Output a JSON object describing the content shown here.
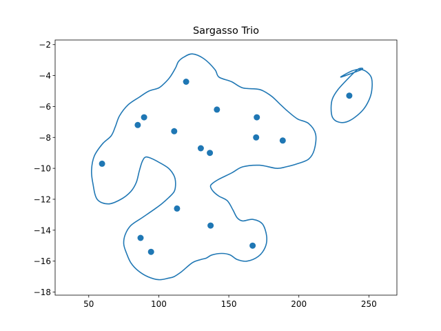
{
  "chart_data": {
    "type": "scatter",
    "title": "Sargasso Trio",
    "xlabel": "",
    "ylabel": "",
    "xlim": [
      26,
      270
    ],
    "ylim": [
      -18.2,
      -1.7
    ],
    "xticks": [
      50,
      100,
      150,
      200,
      250
    ],
    "yticks": [
      -18,
      -16,
      -14,
      -12,
      -10,
      -8,
      -6,
      -4,
      -2
    ],
    "grid": false,
    "colors": {
      "points": "#1f77b4",
      "contour": "#1f77b4"
    },
    "points": [
      {
        "x": 236.0,
        "y": -5.3
      },
      {
        "x": 119.5,
        "y": -4.4
      },
      {
        "x": 141.5,
        "y": -6.2
      },
      {
        "x": 170.0,
        "y": -6.7
      },
      {
        "x": 89.5,
        "y": -6.7
      },
      {
        "x": 85.0,
        "y": -7.2
      },
      {
        "x": 111.0,
        "y": -7.6
      },
      {
        "x": 169.5,
        "y": -8.0
      },
      {
        "x": 188.5,
        "y": -8.2
      },
      {
        "x": 130.0,
        "y": -8.7
      },
      {
        "x": 136.5,
        "y": -9.0
      },
      {
        "x": 59.5,
        "y": -9.7
      },
      {
        "x": 113.0,
        "y": -12.6
      },
      {
        "x": 137.0,
        "y": -13.7
      },
      {
        "x": 87.0,
        "y": -14.5
      },
      {
        "x": 167.0,
        "y": -15.0
      },
      {
        "x": 94.5,
        "y": -15.4
      }
    ],
    "contours": [
      {
        "x": [
          124,
          132,
          140,
          143,
          152,
          160,
          172,
          180,
          186,
          192,
          199,
          207,
          212,
          211,
          207,
          199,
          191,
          184,
          172,
          160,
          152,
          143,
          138,
          137,
          139,
          143,
          149,
          153,
          156,
          160,
          167,
          174,
          177,
          176,
          171,
          163,
          156,
          151,
          145,
          138,
          134,
          130,
          124,
          116,
          111,
          107,
          100,
          92,
          85,
          80,
          77,
          75,
          76,
          80,
          88,
          96,
          102,
          107,
          111,
          112,
          111,
          107,
          100,
          93,
          90,
          88,
          86,
          84,
          80,
          73,
          64,
          56,
          53,
          52,
          54,
          60,
          66,
          69,
          72,
          78,
          86,
          93,
          100,
          104,
          108,
          112,
          114,
          118,
          124
        ],
        "y": [
          -2.6,
          -2.9,
          -3.6,
          -4.1,
          -4.4,
          -4.8,
          -4.9,
          -5.3,
          -5.8,
          -6.3,
          -6.8,
          -7.1,
          -7.8,
          -8.8,
          -9.4,
          -9.7,
          -9.9,
          -10.0,
          -9.8,
          -9.9,
          -10.3,
          -10.7,
          -11.0,
          -11.2,
          -11.5,
          -11.8,
          -12.1,
          -12.7,
          -13.2,
          -13.4,
          -13.3,
          -13.6,
          -14.4,
          -15.1,
          -15.7,
          -16.0,
          -15.9,
          -15.6,
          -15.5,
          -15.6,
          -15.8,
          -15.9,
          -16.1,
          -16.7,
          -17.0,
          -17.1,
          -17.2,
          -17.0,
          -16.6,
          -16.1,
          -15.5,
          -14.9,
          -14.3,
          -13.7,
          -13.2,
          -12.7,
          -12.3,
          -11.9,
          -11.5,
          -11.0,
          -10.5,
          -10.0,
          -9.6,
          -9.3,
          -9.3,
          -9.6,
          -10.2,
          -10.9,
          -11.5,
          -12.0,
          -12.3,
          -12.0,
          -11.0,
          -10.1,
          -9.2,
          -8.4,
          -7.9,
          -7.3,
          -6.6,
          -5.9,
          -5.4,
          -5.0,
          -4.8,
          -4.5,
          -4.1,
          -3.5,
          -3.1,
          -2.8,
          -2.6
        ]
      },
      {
        "x": [
          230,
          238,
          244,
          249,
          252,
          252,
          250,
          246,
          240,
          234,
          228,
          224,
          223,
          224,
          228,
          234,
          242,
          245,
          230
        ],
        "y": [
          -4.1,
          -3.7,
          -3.6,
          -3.8,
          -4.2,
          -5.0,
          -5.6,
          -6.2,
          -6.7,
          -7.0,
          -7.0,
          -6.7,
          -6.1,
          -5.5,
          -4.9,
          -4.3,
          -3.6,
          -3.6,
          -4.1
        ]
      }
    ]
  }
}
